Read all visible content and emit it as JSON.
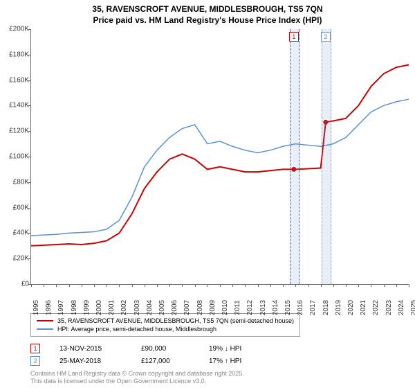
{
  "chart": {
    "title_line1": "35, RAVENSCROFT AVENUE, MIDDLESBROUGH, TS5 7QN",
    "title_line2": "Price paid vs. HM Land Registry's House Price Index (HPI)",
    "title_fontsize": 12,
    "background_color": "#ffffff",
    "axis_color": "#666666",
    "y_axis": {
      "min": 0,
      "max": 200000,
      "tick_step": 20000,
      "tick_labels": [
        "£0",
        "£20K",
        "£40K",
        "£60K",
        "£80K",
        "£100K",
        "£120K",
        "£140K",
        "£160K",
        "£180K",
        "£200K"
      ],
      "label_fontsize": 10
    },
    "x_axis": {
      "min": 1995,
      "max": 2025,
      "ticks": [
        1995,
        1996,
        1997,
        1998,
        1999,
        2000,
        2001,
        2002,
        2003,
        2004,
        2005,
        2006,
        2007,
        2008,
        2009,
        2010,
        2011,
        2012,
        2013,
        2014,
        2015,
        2016,
        2017,
        2018,
        2019,
        2020,
        2021,
        2022,
        2023,
        2024,
        2025
      ],
      "label_fontsize": 10
    },
    "series": [
      {
        "name": "35, RAVENSCROFT AVENUE, MIDDLESBROUGH, TS5 7QN (semi-detached house)",
        "color": "#cc0000",
        "line_width": 2,
        "data": [
          [
            1995,
            30000
          ],
          [
            1996,
            30500
          ],
          [
            1997,
            31000
          ],
          [
            1998,
            31500
          ],
          [
            1999,
            31000
          ],
          [
            2000,
            32000
          ],
          [
            2001,
            34000
          ],
          [
            2002,
            40000
          ],
          [
            2003,
            55000
          ],
          [
            2004,
            75000
          ],
          [
            2005,
            88000
          ],
          [
            2006,
            98000
          ],
          [
            2007,
            102000
          ],
          [
            2008,
            98000
          ],
          [
            2009,
            90000
          ],
          [
            2010,
            92000
          ],
          [
            2011,
            90000
          ],
          [
            2012,
            88000
          ],
          [
            2013,
            88000
          ],
          [
            2014,
            89000
          ],
          [
            2015,
            90000
          ],
          [
            2015.87,
            90000
          ],
          [
            2016,
            90000
          ],
          [
            2017,
            90500
          ],
          [
            2018,
            91000
          ],
          [
            2018.4,
            127000
          ],
          [
            2019,
            128000
          ],
          [
            2020,
            130000
          ],
          [
            2021,
            140000
          ],
          [
            2022,
            155000
          ],
          [
            2023,
            165000
          ],
          [
            2024,
            170000
          ],
          [
            2025,
            172000
          ]
        ],
        "markers": [
          [
            2015.87,
            90000
          ],
          [
            2018.4,
            127000
          ]
        ]
      },
      {
        "name": "HPI: Average price, semi-detached house, Middlesbrough",
        "color": "#5b8fd6",
        "line_width": 1.5,
        "data": [
          [
            1995,
            38000
          ],
          [
            1996,
            38500
          ],
          [
            1997,
            39000
          ],
          [
            1998,
            40000
          ],
          [
            1999,
            40500
          ],
          [
            2000,
            41000
          ],
          [
            2001,
            43000
          ],
          [
            2002,
            50000
          ],
          [
            2003,
            68000
          ],
          [
            2004,
            92000
          ],
          [
            2005,
            105000
          ],
          [
            2006,
            115000
          ],
          [
            2007,
            122000
          ],
          [
            2008,
            125000
          ],
          [
            2009,
            110000
          ],
          [
            2010,
            112000
          ],
          [
            2011,
            108000
          ],
          [
            2012,
            105000
          ],
          [
            2013,
            103000
          ],
          [
            2014,
            105000
          ],
          [
            2015,
            108000
          ],
          [
            2016,
            110000
          ],
          [
            2017,
            109000
          ],
          [
            2018,
            108000
          ],
          [
            2019,
            110000
          ],
          [
            2020,
            115000
          ],
          [
            2021,
            125000
          ],
          [
            2022,
            135000
          ],
          [
            2023,
            140000
          ],
          [
            2024,
            143000
          ],
          [
            2025,
            145000
          ]
        ]
      }
    ],
    "event_markers": [
      {
        "index": "1",
        "year": 2015.87,
        "color": "#cc0000"
      },
      {
        "index": "2",
        "year": 2018.4,
        "color": "#5b8fd6"
      }
    ]
  },
  "legend": {
    "items": [
      {
        "color": "#cc0000",
        "width": 2,
        "label": "35, RAVENSCROFT AVENUE, MIDDLESBROUGH, TS5 7QN (semi-detached house)"
      },
      {
        "color": "#5b8fd6",
        "width": 1.5,
        "label": "HPI: Average price, semi-detached house, Middlesbrough"
      }
    ]
  },
  "transactions": [
    {
      "marker": "1",
      "marker_color": "#cc0000",
      "date": "13-NOV-2015",
      "price": "£90,000",
      "delta": "19% ↓ HPI"
    },
    {
      "marker": "2",
      "marker_color": "#5b8fd6",
      "date": "25-MAY-2018",
      "price": "£127,000",
      "delta": "17% ↑ HPI"
    }
  ],
  "footer": {
    "line1": "Contains HM Land Registry data © Crown copyright and database right 2025.",
    "line2": "This data is licensed under the Open Government Licence v3.0."
  }
}
